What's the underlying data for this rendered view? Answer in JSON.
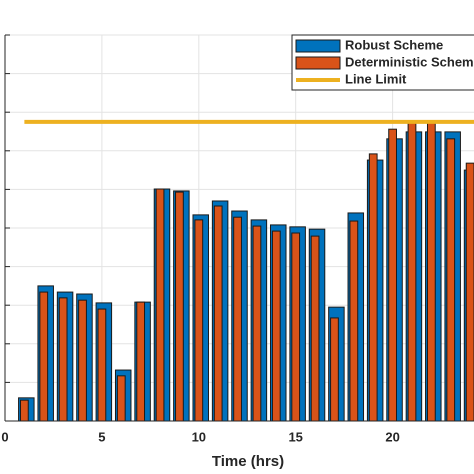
{
  "chart_data": {
    "type": "bar",
    "x_label": "Time (hrs)",
    "x": [
      1,
      2,
      3,
      4,
      5,
      6,
      7,
      8,
      9,
      10,
      11,
      12,
      13,
      14,
      15,
      16,
      17,
      18,
      19,
      20,
      21,
      22,
      23,
      24
    ],
    "series": [
      {
        "name": "Robust Scheme",
        "color": "#0072bd",
        "values": [
          0.6,
          3.5,
          3.34,
          3.29,
          3.06,
          1.32,
          3.08,
          6.01,
          5.96,
          5.34,
          5.7,
          5.44,
          5.21,
          5.08,
          5.03,
          4.97,
          2.95,
          5.39,
          6.76,
          7.31,
          7.49,
          7.49,
          7.49,
          6.5
        ]
      },
      {
        "name": "Deterministic Scheme",
        "color": "#d95319",
        "values": [
          0.54,
          3.34,
          3.19,
          3.13,
          2.9,
          1.17,
          3.08,
          6.01,
          5.93,
          5.21,
          5.57,
          5.28,
          5.05,
          4.92,
          4.87,
          4.79,
          2.67,
          5.18,
          6.92,
          7.56,
          7.72,
          7.72,
          7.31,
          6.68
        ]
      }
    ],
    "limit": {
      "name": "Line Limit",
      "color": "#edb120",
      "value": 7.75,
      "start": 1
    },
    "xlim": [
      0,
      24.2
    ],
    "xticks": [
      0,
      5,
      10,
      15,
      20
    ],
    "ylim": [
      0,
      10
    ],
    "yticks": [
      0,
      1,
      2,
      3,
      4,
      5,
      6,
      7,
      8,
      9,
      10
    ],
    "grid": true
  }
}
